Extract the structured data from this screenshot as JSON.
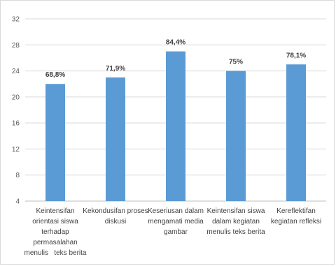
{
  "chart_data": {
    "type": "bar",
    "categories": [
      [
        "Keintensifan",
        "orientasi siswa",
        "terhadap",
        "permasalahan",
        "menulis   teks berita"
      ],
      [
        "Kekondusifan proses",
        "diskusi"
      ],
      [
        "Keseriusan dalam",
        "mengamati media",
        "gambar"
      ],
      [
        "Keintensifan siswa",
        "dalam kegiatan",
        "menulis teks berita"
      ],
      [
        "Kereflektifan",
        "kegiatan refleksi"
      ]
    ],
    "values": [
      22,
      23,
      27,
      24,
      25
    ],
    "data_labels": [
      "68,8%",
      "71,9%",
      "84,4%",
      "75%",
      "78,1%"
    ],
    "ylim": [
      4,
      32
    ],
    "yticks": [
      4,
      8,
      12,
      16,
      20,
      24,
      28,
      32
    ],
    "grid": true,
    "bar_color": "#5b9bd5",
    "title": "",
    "xlabel": "",
    "ylabel": ""
  }
}
